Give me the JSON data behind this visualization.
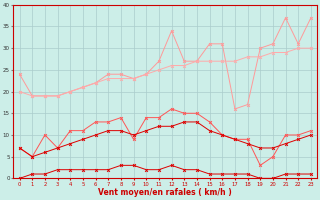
{
  "xlabel": "Vent moyen/en rafales ( km/h )",
  "background_color": "#cceee8",
  "grid_color": "#aacccc",
  "x_values": [
    0,
    1,
    2,
    3,
    4,
    5,
    6,
    7,
    8,
    9,
    10,
    11,
    12,
    13,
    14,
    15,
    16,
    17,
    18,
    19,
    20,
    21,
    22,
    23
  ],
  "line1_color": "#ff9999",
  "line2_color": "#ffaaaa",
  "line3_color": "#ff5555",
  "line4_color": "#dd0000",
  "line5_color": "#ff9999",
  "line1_y": [
    24,
    19,
    19,
    19,
    20,
    21,
    22,
    24,
    24,
    23,
    24,
    27,
    34,
    27,
    27,
    31,
    31,
    16,
    17,
    30,
    31,
    37,
    31,
    37
  ],
  "line2_y": [
    20,
    19,
    19,
    19,
    20,
    21,
    22,
    23,
    23,
    23,
    24,
    25,
    26,
    26,
    27,
    27,
    27,
    27,
    28,
    28,
    29,
    29,
    30,
    30
  ],
  "line3_y": [
    7,
    5,
    10,
    7,
    11,
    11,
    13,
    13,
    14,
    9,
    14,
    14,
    16,
    15,
    15,
    13,
    10,
    9,
    9,
    3,
    5,
    10,
    10,
    11
  ],
  "line4_y": [
    7,
    5,
    6,
    7,
    8,
    9,
    10,
    11,
    11,
    10,
    11,
    12,
    12,
    13,
    13,
    11,
    10,
    9,
    8,
    7,
    7,
    8,
    9,
    10
  ],
  "line5_y": [
    0,
    1,
    1,
    2,
    2,
    2,
    2,
    2,
    3,
    3,
    2,
    2,
    3,
    2,
    2,
    1,
    1,
    1,
    1,
    0,
    0,
    1,
    1,
    1
  ],
  "yticks": [
    0,
    5,
    10,
    15,
    20,
    25,
    30,
    35,
    40
  ],
  "ylim": [
    0,
    40
  ],
  "xlim": [
    0,
    23
  ]
}
